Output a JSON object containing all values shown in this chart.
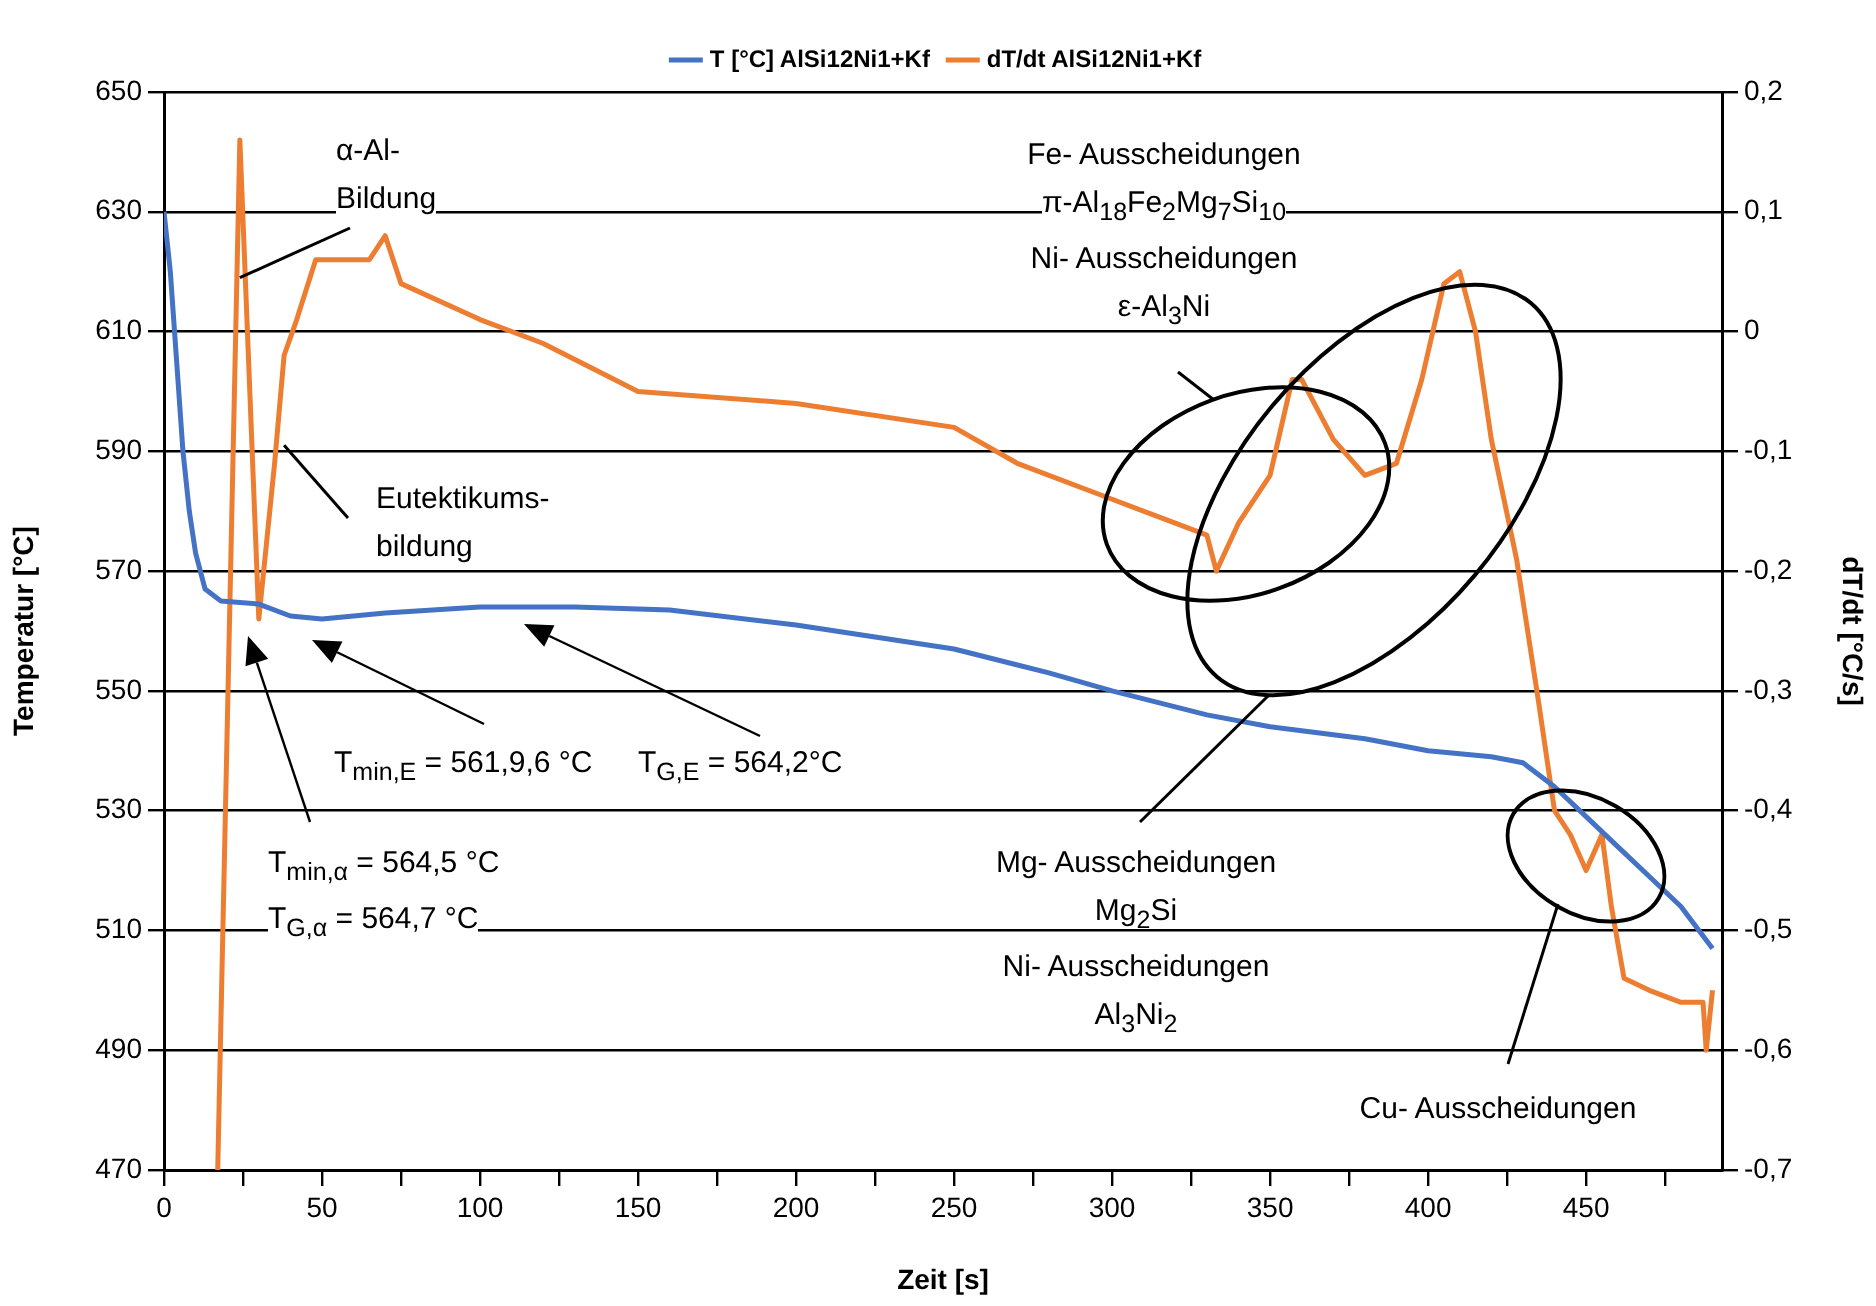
{
  "chart_data": {
    "type": "line",
    "xlabel": "Zeit [s]",
    "ylabel": "Temperatur [°C]",
    "y2label": "dT/dt [°C/s]",
    "xlim": [
      0,
      493
    ],
    "xticks": [
      0,
      {
        "value": 25,
        "label": null
      },
      50,
      {
        "value": 75,
        "label": null
      },
      100,
      {
        "value": 125,
        "label": null
      },
      150,
      {
        "value": 175,
        "label": null
      },
      200,
      {
        "value": 225,
        "label": null
      },
      250,
      {
        "value": 275,
        "label": null
      },
      300,
      {
        "value": 325,
        "label": null
      },
      350,
      {
        "value": 375,
        "label": null
      },
      400,
      {
        "value": 425,
        "label": null
      },
      450,
      {
        "value": 475,
        "label": null
      }
    ],
    "ylim": [
      470,
      650
    ],
    "yticks": [
      470,
      490,
      510,
      530,
      550,
      570,
      590,
      610,
      630,
      650
    ],
    "y2lim": [
      -0.7,
      0.2
    ],
    "y2ticks": [
      {
        "value": -0.7,
        "label": "-0,7"
      },
      {
        "value": -0.6,
        "label": "-0,6"
      },
      {
        "value": -0.5,
        "label": "-0,5"
      },
      {
        "value": -0.4,
        "label": "-0,4"
      },
      {
        "value": -0.3,
        "label": "-0,3"
      },
      {
        "value": -0.2,
        "label": "-0,2"
      },
      {
        "value": -0.1,
        "label": "-0,1"
      },
      {
        "value": 0,
        "label": "0"
      },
      {
        "value": 0.1,
        "label": "0,1"
      },
      {
        "value": 0.2,
        "label": "0,2"
      }
    ],
    "grid": "y",
    "legend": "top",
    "marker": "none",
    "line_style": "solid",
    "series": [
      {
        "name": "T [°C] AlSi12Ni1+Kf",
        "color": "#4472c4",
        "x": [
          0,
          2,
          4,
          6,
          8,
          10,
          13,
          18,
          30,
          40,
          50,
          70,
          100,
          130,
          160,
          200,
          250,
          280,
          300,
          330,
          350,
          380,
          400,
          410,
          420,
          430,
          440,
          450,
          460,
          470,
          480,
          490
        ],
        "values": [
          630,
          620,
          605,
          590,
          580,
          573,
          567,
          565,
          564.5,
          562.5,
          562,
          563,
          564,
          564,
          563.5,
          561,
          557,
          553,
          550,
          546,
          544,
          542,
          540,
          539.5,
          539,
          538,
          534,
          529,
          524,
          519,
          514,
          507
        ]
      },
      {
        "name": "dT/dt AlSi12Ni1+Kf",
        "color": "#ed7d31",
        "axis": "y2",
        "x": [
          17,
          24,
          30,
          35,
          38,
          42,
          48,
          55,
          65,
          70,
          75,
          100,
          120,
          150,
          200,
          250,
          270,
          300,
          320,
          330,
          333,
          340,
          350,
          357,
          360,
          370,
          380,
          390,
          398,
          405,
          410,
          415,
          420,
          428,
          435,
          440,
          445,
          450,
          455,
          458,
          462,
          470,
          480,
          487,
          488,
          490
        ],
        "values": [
          -0.7,
          0.16,
          -0.24,
          -0.11,
          -0.02,
          0.01,
          0.06,
          0.06,
          0.06,
          0.08,
          0.04,
          0.01,
          -0.01,
          -0.05,
          -0.06,
          -0.08,
          -0.11,
          -0.14,
          -0.16,
          -0.17,
          -0.2,
          -0.16,
          -0.12,
          -0.04,
          -0.04,
          -0.09,
          -0.12,
          -0.11,
          -0.04,
          0.04,
          0.05,
          0,
          -0.09,
          -0.19,
          -0.31,
          -0.4,
          -0.42,
          -0.45,
          -0.42,
          -0.48,
          -0.54,
          -0.55,
          -0.56,
          -0.56,
          -0.6,
          -0.55
        ]
      }
    ],
    "annotations": [
      {
        "text": "α-Al-\nBildung",
        "x": 24,
        "y": 619
      },
      {
        "text": "Eutektikums-\nbildung",
        "x": 38,
        "y": 591
      },
      "T$_{min,E}$ = 561,9,6 °C",
      "T$_{G,E}$ = 564,2°C",
      "T$_{min,α}$ = 564,5 °C\nT$_{G,α}$ = 564,7 °C",
      "Fe- Ausscheidungen\nπ-Al$_{18}$Fe$_{2}$Mg$_{7}$Si$_{10}$\nNi- Ausscheidungen\nε-Al$_{3}$Ni",
      "Mg- Ausscheidungen\nMg$_{2}$Si\nNi- Ausscheidungen\nAl$_{3}$Ni$_{2}$",
      "Cu- Ausscheidungen"
    ]
  }
}
